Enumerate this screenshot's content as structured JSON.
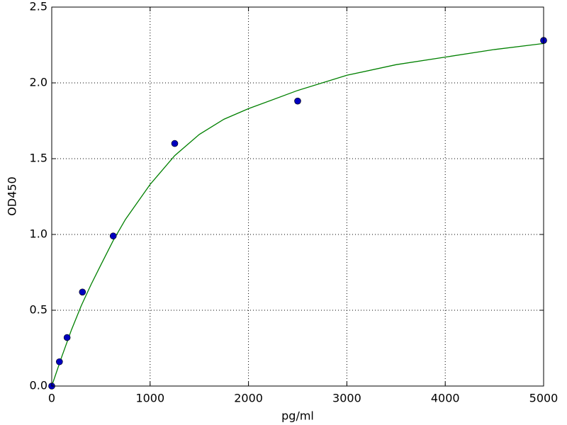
{
  "chart_data": {
    "type": "scatter",
    "x_label": "pg/ml",
    "y_label": "OD450",
    "xlim": [
      0,
      5000
    ],
    "ylim": [
      0,
      2.5
    ],
    "xticks": [
      0,
      1000,
      2000,
      3000,
      4000,
      5000
    ],
    "yticks": [
      {
        "value": 0,
        "label": "0.0"
      },
      {
        "value": 0.5,
        "label": "0.5"
      },
      {
        "value": 1,
        "label": "1.0"
      },
      {
        "value": 1.5,
        "label": "1.5"
      },
      {
        "value": 2,
        "label": "2.0"
      },
      {
        "value": 2.5,
        "label": "2.5"
      }
    ],
    "grid": true,
    "series": [
      {
        "style": "markers",
        "color": "#0000bf",
        "x": [
          0,
          78,
          156,
          312,
          625,
          1250,
          2500,
          5000
        ],
        "values": [
          0.0,
          0.16,
          0.32,
          0.62,
          0.99,
          1.6,
          1.88,
          2.28
        ]
      },
      {
        "style": "line",
        "color": "#008000",
        "x": [
          0,
          100,
          200,
          300,
          400,
          500,
          625,
          750,
          1000,
          1250,
          1500,
          1750,
          2000,
          2500,
          3000,
          3500,
          4000,
          4500,
          5000
        ],
        "values": [
          0,
          0.19,
          0.37,
          0.53,
          0.67,
          0.8,
          0.96,
          1.1,
          1.33,
          1.52,
          1.66,
          1.76,
          1.83,
          1.95,
          2.05,
          2.12,
          2.17,
          2.22,
          2.26
        ]
      }
    ]
  }
}
